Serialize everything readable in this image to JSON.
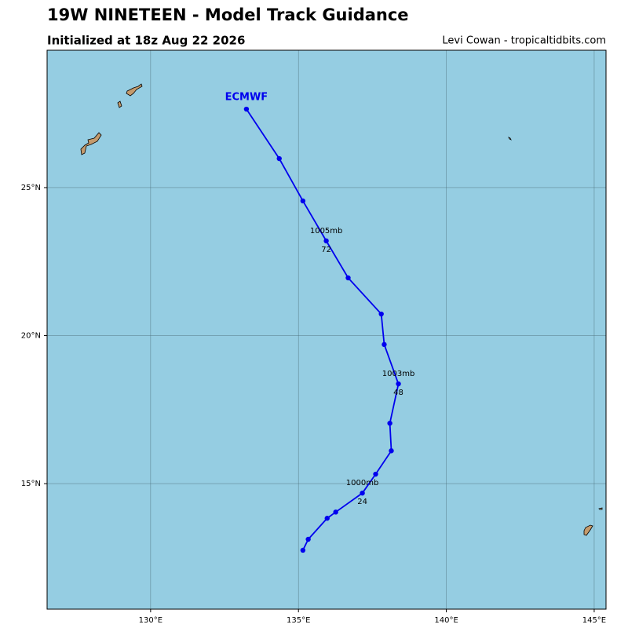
{
  "chart_data": {
    "type": "track",
    "title": "19W NINETEEN - Model Track Guidance",
    "subtitle": "Initialized at 18z Aug 22 2026",
    "credit": "Levi Cowan - tropicaltidbits.com",
    "xlim": [
      126.5,
      145.4
    ],
    "ylim": [
      10.76,
      29.64
    ],
    "xticks": [
      {
        "value": 130,
        "label": "130°E"
      },
      {
        "value": 135,
        "label": "135°E"
      },
      {
        "value": 140,
        "label": "140°E"
      },
      {
        "value": 145,
        "label": "145°E"
      }
    ],
    "yticks": [
      {
        "value": 15,
        "label": "15°N"
      },
      {
        "value": 20,
        "label": "20°N"
      },
      {
        "value": 25,
        "label": "25°N"
      }
    ],
    "grid": true,
    "series": [
      {
        "name": "ECMWF",
        "color": "#0000ee",
        "x": [
          135.15,
          135.33,
          135.97,
          136.26,
          137.16,
          137.61,
          138.14,
          138.09,
          138.38,
          137.9,
          137.8,
          136.68,
          135.94,
          135.15,
          134.35,
          133.24
        ],
        "y": [
          12.75,
          13.12,
          13.83,
          14.04,
          14.68,
          15.32,
          16.11,
          17.04,
          18.37,
          19.7,
          20.73,
          21.95,
          23.2,
          24.55,
          25.98,
          27.65
        ],
        "pressure_labels": [
          null,
          null,
          null,
          null,
          "1000mb",
          null,
          null,
          null,
          "1003mb",
          null,
          null,
          null,
          "1005mb",
          null,
          null,
          null
        ],
        "hour_labels": [
          null,
          null,
          null,
          null,
          "24",
          null,
          null,
          null,
          "48",
          null,
          null,
          null,
          "72",
          null,
          null,
          null
        ]
      }
    ]
  }
}
